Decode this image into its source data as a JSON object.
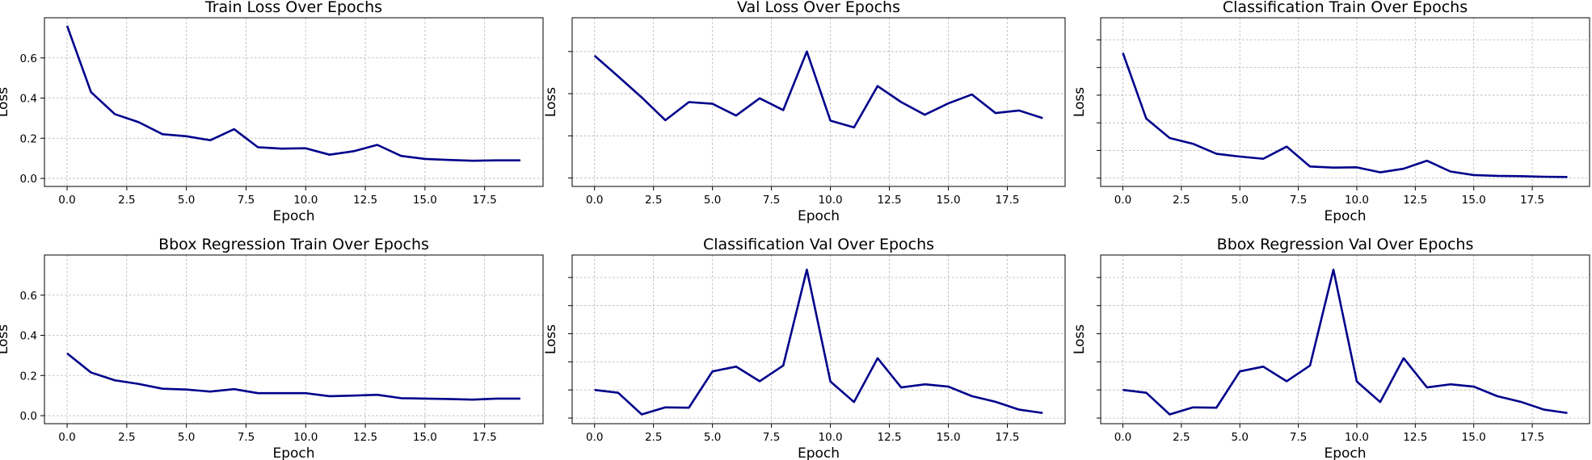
{
  "chart_data": [
    {
      "type": "line",
      "title": "Train Loss Over Epochs",
      "xlabel": "Epoch",
      "ylabel": "Loss",
      "xlim": [
        -0.95,
        19.95
      ],
      "ylim": [
        -0.04,
        0.8
      ],
      "xticks": [
        0.0,
        2.5,
        5.0,
        7.5,
        10.0,
        12.5,
        15.0,
        17.5
      ],
      "xtick_labels": [
        "0.0",
        "2.5",
        "5.0",
        "7.5",
        "10.0",
        "12.5",
        "15.0",
        "17.5"
      ],
      "yticks": [
        0.0,
        0.2,
        0.4,
        0.6
      ],
      "ytick_labels": [
        "0.0",
        "0.2",
        "0.4",
        "0.6"
      ],
      "grid": true,
      "line_color": "#00008b",
      "x": [
        0,
        1,
        2,
        3,
        4,
        5,
        6,
        7,
        8,
        9,
        10,
        11,
        12,
        13,
        14,
        15,
        16,
        17,
        18,
        19
      ],
      "values": [
        0.76,
        0.43,
        0.32,
        0.28,
        0.22,
        0.21,
        0.19,
        0.245,
        0.155,
        0.148,
        0.15,
        0.118,
        0.135,
        0.167,
        0.112,
        0.097,
        0.092,
        0.088,
        0.09,
        0.09
      ]
    },
    {
      "type": "line",
      "title": "Val Loss Over Epochs",
      "xlabel": "Epoch",
      "ylabel": "Loss",
      "xlim": [
        -0.95,
        19.95
      ],
      "ylim": [
        0.18,
        0.58
      ],
      "xticks": [
        0.0,
        2.5,
        5.0,
        7.5,
        10.0,
        12.5,
        15.0,
        17.5
      ],
      "xtick_labels": [
        "0.0",
        "2.5",
        "5.0",
        "7.5",
        "10.0",
        "12.5",
        "15.0",
        "17.5"
      ],
      "yticks": [
        0.2,
        0.3,
        0.4,
        0.5
      ],
      "ytick_labels": [
        "",
        "",
        "",
        ""
      ],
      "grid": true,
      "line_color": "#00008b",
      "x": [
        0,
        1,
        2,
        3,
        4,
        5,
        6,
        7,
        8,
        9,
        10,
        11,
        12,
        13,
        14,
        15,
        16,
        17,
        18,
        19
      ],
      "values": [
        0.49,
        0.441,
        0.391,
        0.337,
        0.38,
        0.376,
        0.348,
        0.389,
        0.361,
        0.5,
        0.336,
        0.32,
        0.418,
        0.38,
        0.35,
        0.377,
        0.398,
        0.354,
        0.36,
        0.342
      ]
    },
    {
      "type": "line",
      "title": "Classification Train Over Epochs",
      "xlabel": "Epoch",
      "ylabel": "Loss",
      "xlim": [
        -0.95,
        19.95
      ],
      "ylim": [
        -0.03,
        0.58
      ],
      "xticks": [
        0.0,
        2.5,
        5.0,
        7.5,
        10.0,
        12.5,
        15.0,
        17.5
      ],
      "xtick_labels": [
        "0.0",
        "2.5",
        "5.0",
        "7.5",
        "10.0",
        "12.5",
        "15.0",
        "17.5"
      ],
      "yticks": [
        0.0,
        0.1,
        0.2,
        0.3,
        0.4,
        0.5
      ],
      "ytick_labels": [
        "",
        "",
        "",
        "",
        "",
        ""
      ],
      "grid": true,
      "line_color": "#00008b",
      "x": [
        0,
        1,
        2,
        3,
        4,
        5,
        6,
        7,
        8,
        9,
        10,
        11,
        12,
        13,
        14,
        15,
        16,
        17,
        18,
        19
      ],
      "values": [
        0.453,
        0.215,
        0.145,
        0.124,
        0.088,
        0.078,
        0.07,
        0.114,
        0.042,
        0.038,
        0.039,
        0.021,
        0.034,
        0.063,
        0.024,
        0.011,
        0.008,
        0.007,
        0.005,
        0.004
      ]
    },
    {
      "type": "line",
      "title": "Bbox Regression Train Over Epochs",
      "xlabel": "Epoch",
      "ylabel": "Loss",
      "xlim": [
        -0.95,
        19.95
      ],
      "ylim": [
        -0.04,
        0.8
      ],
      "xticks": [
        0.0,
        2.5,
        5.0,
        7.5,
        10.0,
        12.5,
        15.0,
        17.5
      ],
      "xtick_labels": [
        "0.0",
        "2.5",
        "5.0",
        "7.5",
        "10.0",
        "12.5",
        "15.0",
        "17.5"
      ],
      "yticks": [
        0.0,
        0.2,
        0.4,
        0.6
      ],
      "ytick_labels": [
        "0.0",
        "0.2",
        "0.4",
        "0.6"
      ],
      "grid": true,
      "line_color": "#00008b",
      "x": [
        0,
        1,
        2,
        3,
        4,
        5,
        6,
        7,
        8,
        9,
        10,
        11,
        12,
        13,
        14,
        15,
        16,
        17,
        18,
        19
      ],
      "values": [
        0.31,
        0.215,
        0.176,
        0.158,
        0.134,
        0.13,
        0.12,
        0.132,
        0.112,
        0.112,
        0.112,
        0.097,
        0.1,
        0.104,
        0.087,
        0.085,
        0.083,
        0.08,
        0.085,
        0.085
      ]
    },
    {
      "type": "line",
      "title": "Classification Val Over Epochs",
      "xlabel": "Epoch",
      "ylabel": "Loss",
      "xlim": [
        -0.95,
        19.95
      ],
      "ylim": [
        0.08,
        0.68
      ],
      "xticks": [
        0.0,
        2.5,
        5.0,
        7.5,
        10.0,
        12.5,
        15.0,
        17.5
      ],
      "xtick_labels": [
        "0.0",
        "2.5",
        "5.0",
        "7.5",
        "10.0",
        "12.5",
        "15.0",
        "17.5"
      ],
      "yticks": [
        0.1,
        0.2,
        0.3,
        0.4,
        0.5,
        0.6
      ],
      "ytick_labels": [
        "",
        "",
        "",
        "",
        "",
        ""
      ],
      "grid": true,
      "line_color": "#00008b",
      "x": [
        0,
        1,
        2,
        3,
        4,
        5,
        6,
        7,
        8,
        9,
        10,
        11,
        12,
        13,
        14,
        15,
        16,
        17,
        18,
        19
      ],
      "values": [
        0.2,
        0.19,
        0.113,
        0.138,
        0.137,
        0.266,
        0.283,
        0.231,
        0.287,
        0.628,
        0.23,
        0.157,
        0.313,
        0.209,
        0.22,
        0.212,
        0.178,
        0.158,
        0.13,
        0.118
      ]
    },
    {
      "type": "line",
      "title": "Bbox Regression Val Over Epochs",
      "xlabel": "Epoch",
      "ylabel": "Loss",
      "xlim": [
        -0.95,
        19.95
      ],
      "ylim": [
        0.08,
        0.68
      ],
      "xticks": [
        0.0,
        2.5,
        5.0,
        7.5,
        10.0,
        12.5,
        15.0,
        17.5
      ],
      "xtick_labels": [
        "0.0",
        "2.5",
        "5.0",
        "7.5",
        "10.0",
        "12.5",
        "15.0",
        "17.5"
      ],
      "yticks": [
        0.1,
        0.2,
        0.3,
        0.4,
        0.5,
        0.6
      ],
      "ytick_labels": [
        "",
        "",
        "",
        "",
        "",
        ""
      ],
      "grid": true,
      "line_color": "#00008b",
      "x": [
        0,
        1,
        2,
        3,
        4,
        5,
        6,
        7,
        8,
        9,
        10,
        11,
        12,
        13,
        14,
        15,
        16,
        17,
        18,
        19
      ],
      "values": [
        0.2,
        0.19,
        0.113,
        0.138,
        0.137,
        0.266,
        0.283,
        0.231,
        0.287,
        0.628,
        0.23,
        0.157,
        0.313,
        0.209,
        0.22,
        0.212,
        0.178,
        0.158,
        0.13,
        0.118
      ]
    }
  ]
}
